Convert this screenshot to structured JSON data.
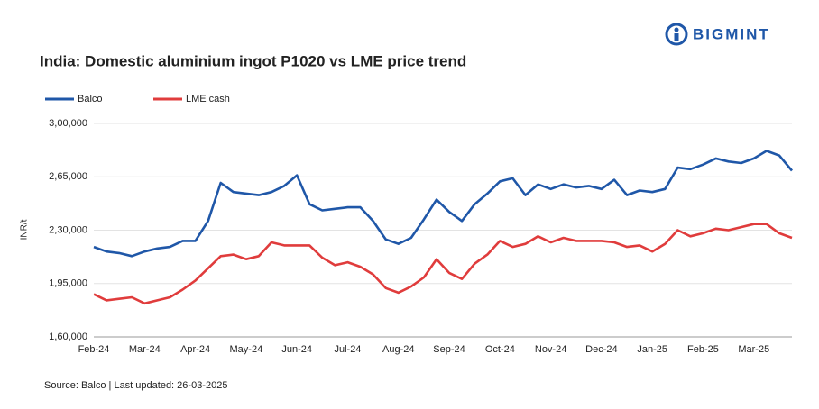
{
  "brand": "BIGMINT",
  "chart_data": {
    "type": "line",
    "title": "India: Domestic aluminium ingot P1020 vs LME price trend",
    "y_label": "INR/t",
    "source": "Source: Balco | Last updated: 26-03-2025",
    "grid": true,
    "legend": "top-left",
    "ylim": [
      160000,
      300000
    ],
    "yticks": [
      {
        "value": 160000,
        "label": "1,60,000"
      },
      {
        "value": 195000,
        "label": "1,95,000"
      },
      {
        "value": 230000,
        "label": "2,30,000"
      },
      {
        "value": 265000,
        "label": "2,65,000"
      },
      {
        "value": 300000,
        "label": "3,00,000"
      }
    ],
    "categories": [
      "Feb-24",
      null,
      null,
      null,
      "Mar-24",
      null,
      null,
      null,
      "Apr-24",
      null,
      null,
      null,
      "May-24",
      null,
      null,
      null,
      "Jun-24",
      null,
      null,
      null,
      "Jul-24",
      null,
      null,
      null,
      "Aug-24",
      null,
      null,
      null,
      "Sep-24",
      null,
      null,
      null,
      "Oct-24",
      null,
      null,
      null,
      "Nov-24",
      null,
      null,
      null,
      "Dec-24",
      null,
      null,
      null,
      "Jan-25",
      null,
      null,
      null,
      "Feb-25",
      null,
      null,
      null,
      "Mar-25",
      null,
      null,
      null
    ],
    "series": [
      {
        "name": "Balco",
        "color": "#1f57a8",
        "values": [
          219000,
          216000,
          215000,
          213000,
          216000,
          218000,
          219000,
          223000,
          223000,
          236000,
          261000,
          255000,
          254000,
          253000,
          255000,
          259000,
          266000,
          247000,
          243000,
          244000,
          245000,
          245000,
          236000,
          224000,
          221000,
          225000,
          237000,
          250000,
          242000,
          236000,
          247000,
          254000,
          262000,
          264000,
          253000,
          260000,
          257000,
          260000,
          258000,
          259000,
          257000,
          263000,
          253000,
          256000,
          255000,
          257000,
          271000,
          270000,
          273000,
          277000,
          275000,
          274000,
          277000,
          282000,
          279000,
          269000
        ]
      },
      {
        "name": "LME cash",
        "color": "#e03c3c",
        "values": [
          188000,
          184000,
          185000,
          186000,
          182000,
          184000,
          186000,
          191000,
          197000,
          205000,
          213000,
          214000,
          211000,
          213000,
          222000,
          220000,
          220000,
          220000,
          212000,
          207000,
          209000,
          206000,
          201000,
          192000,
          189000,
          193000,
          199000,
          211000,
          202000,
          198000,
          208000,
          214000,
          223000,
          219000,
          221000,
          226000,
          222000,
          225000,
          223000,
          223000,
          223000,
          222000,
          219000,
          220000,
          216000,
          221000,
          230000,
          226000,
          228000,
          231000,
          230000,
          232000,
          234000,
          234000,
          228000,
          225000
        ]
      }
    ]
  }
}
